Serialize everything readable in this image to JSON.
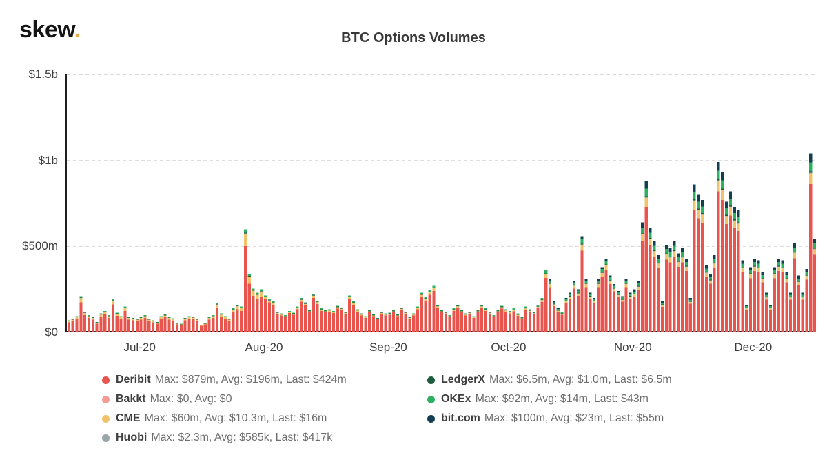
{
  "logo": {
    "brand": "skew",
    "dot": "."
  },
  "title": "BTC Options Volumes",
  "chart_data": {
    "type": "bar",
    "stacked": true,
    "title": "BTC Options Volumes",
    "value_unit": "USD millions",
    "ylim": [
      0,
      1500
    ],
    "grid": "dashed horizontal gridlines at $500m, $1b, $1.5b",
    "legend_position": "bottom",
    "x_description": "daily stacked bars from mid-June 2020 to mid-December 2020",
    "y_ticks": [
      {
        "value": 1500,
        "label": "$1.5b"
      },
      {
        "value": 1000,
        "label": "$1b"
      },
      {
        "value": 500,
        "label": "$500m"
      },
      {
        "value": 0,
        "label": "$0"
      }
    ],
    "x_ticks": [
      {
        "index": 18,
        "label": "Jul-20"
      },
      {
        "index": 49,
        "label": "Aug-20"
      },
      {
        "index": 80,
        "label": "Sep-20"
      },
      {
        "index": 110,
        "label": "Oct-20"
      },
      {
        "index": 141,
        "label": "Nov-20"
      },
      {
        "index": 171,
        "label": "Dec-20"
      }
    ],
    "totals_usd_m": [
      70,
      80,
      95,
      210,
      120,
      100,
      90,
      60,
      110,
      125,
      100,
      195,
      115,
      95,
      150,
      90,
      85,
      80,
      90,
      100,
      80,
      70,
      60,
      95,
      105,
      90,
      82,
      55,
      50,
      85,
      95,
      92,
      80,
      45,
      55,
      90,
      100,
      170,
      110,
      95,
      80,
      140,
      160,
      150,
      600,
      340,
      255,
      230,
      250,
      215,
      195,
      180,
      120,
      110,
      100,
      125,
      115,
      150,
      200,
      175,
      130,
      225,
      185,
      140,
      130,
      135,
      125,
      155,
      145,
      120,
      215,
      180,
      135,
      110,
      95,
      130,
      105,
      85,
      120,
      110,
      115,
      130,
      105,
      145,
      120,
      90,
      110,
      150,
      230,
      205,
      245,
      270,
      160,
      130,
      120,
      100,
      140,
      160,
      130,
      110,
      120,
      95,
      130,
      160,
      140,
      120,
      100,
      130,
      155,
      135,
      125,
      140,
      110,
      90,
      150,
      135,
      120,
      160,
      200,
      360,
      310,
      180,
      140,
      120,
      200,
      230,
      300,
      250,
      560,
      310,
      230,
      200,
      310,
      380,
      430,
      330,
      280,
      240,
      210,
      310,
      230,
      250,
      300,
      640,
      880,
      610,
      530,
      450,
      180,
      510,
      490,
      530,
      460,
      490,
      430,
      200,
      860,
      800,
      770,
      390,
      340,
      450,
      990,
      930,
      760,
      820,
      730,
      710,
      420,
      160,
      380,
      430,
      420,
      350,
      230,
      160,
      380,
      430,
      420,
      350,
      230,
      520,
      330,
      230,
      370,
      1040,
      545
    ],
    "series": [
      {
        "key": "deribit",
        "name": "Deribit",
        "color": "#e8544e",
        "remainder": true
      },
      {
        "key": "cme",
        "name": "CME",
        "color": "#f0c36a",
        "shares": [
          {
            "start": 0,
            "share": 0.12
          },
          {
            "start": 49,
            "share": 0.06
          }
        ]
      },
      {
        "key": "huobi",
        "name": "Huobi",
        "color": "#9aa5ab",
        "shares": [
          {
            "start": 0,
            "share": 0.004
          }
        ]
      },
      {
        "key": "ledgerx",
        "name": "LedgerX",
        "color": "#1e5c3d",
        "shares": [
          {
            "start": 0,
            "share": 0.007
          }
        ]
      },
      {
        "key": "okex",
        "name": "OKEx",
        "color": "#2eb062",
        "shares": [
          {
            "start": 0,
            "share": 0.035
          },
          {
            "start": 110,
            "share": 0.05
          }
        ]
      },
      {
        "key": "bitcom",
        "name": "bit.com",
        "color": "#123f52",
        "shares": [
          {
            "start": 0,
            "share": 0
          },
          {
            "start": 120,
            "share": 0.03
          },
          {
            "start": 141,
            "share": 0.05
          }
        ]
      },
      {
        "key": "bakkt",
        "name": "Bakkt",
        "color": "#f29b97",
        "shares": [
          {
            "start": 0,
            "share": 0
          }
        ]
      }
    ],
    "legend": {
      "columns": [
        [
          {
            "key": "deribit",
            "name": "Deribit",
            "color": "#e8544e",
            "stats": "Max: $879m, Avg: $196m, Last: $424m"
          },
          {
            "key": "bakkt",
            "name": "Bakkt",
            "color": "#f29b97",
            "stats": "Max: $0, Avg: $0"
          },
          {
            "key": "cme",
            "name": "CME",
            "color": "#f0c36a",
            "stats": "Max: $60m, Avg: $10.3m, Last: $16m"
          },
          {
            "key": "huobi",
            "name": "Huobi",
            "color": "#9aa5ab",
            "stats": "Max: $2.3m, Avg: $585k, Last: $417k"
          }
        ],
        [
          {
            "key": "ledgerx",
            "name": "LedgerX",
            "color": "#1e5c3d",
            "stats": "Max: $6.5m, Avg: $1.0m, Last: $6.5m"
          },
          {
            "key": "okex",
            "name": "OKEx",
            "color": "#2eb062",
            "stats": "Max: $92m, Avg: $14m, Last: $43m"
          },
          {
            "key": "bitcom",
            "name": "bit.com",
            "color": "#123f52",
            "stats": "Max: $100m, Avg: $23m, Last: $55m"
          }
        ]
      ]
    }
  }
}
